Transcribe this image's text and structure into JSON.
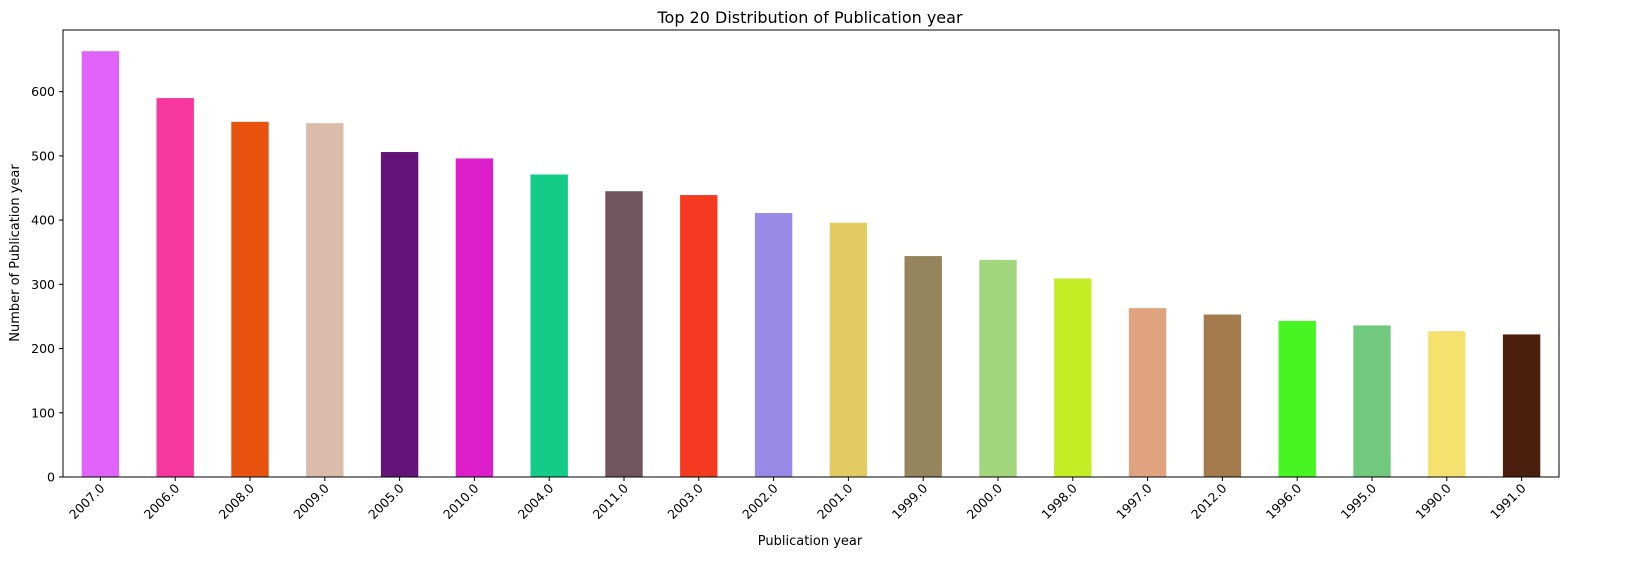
{
  "chart_data": {
    "type": "bar",
    "title": "Top 20 Distribution of Publication year",
    "xlabel": "Publication year",
    "ylabel": "Number of Publication year",
    "categories": [
      "2007.0",
      "2006.0",
      "2008.0",
      "2009.0",
      "2005.0",
      "2010.0",
      "2004.0",
      "2011.0",
      "2003.0",
      "2002.0",
      "2001.0",
      "1999.0",
      "2000.0",
      "1998.0",
      "1997.0",
      "2012.0",
      "1996.0",
      "1995.0",
      "1990.0",
      "1991.0"
    ],
    "values": [
      663,
      590,
      553,
      551,
      506,
      496,
      471,
      445,
      439,
      411,
      396,
      344,
      338,
      309,
      263,
      253,
      243,
      236,
      227,
      222
    ],
    "colors": [
      "#e063fa",
      "#f5379e",
      "#e8530f",
      "#dbbcab",
      "#641478",
      "#dc1fca",
      "#12cc88",
      "#70555e",
      "#f53a22",
      "#988ae6",
      "#e3cb63",
      "#95855d",
      "#a2d67d",
      "#c5ed26",
      "#e0a37f",
      "#a57b4e",
      "#46f522",
      "#71c97d",
      "#f5e16e",
      "#4a1f0e"
    ],
    "yticks": [
      0,
      100,
      200,
      300,
      400,
      500,
      600
    ],
    "ylim": [
      0,
      696
    ],
    "grid": false,
    "legend": "none"
  }
}
